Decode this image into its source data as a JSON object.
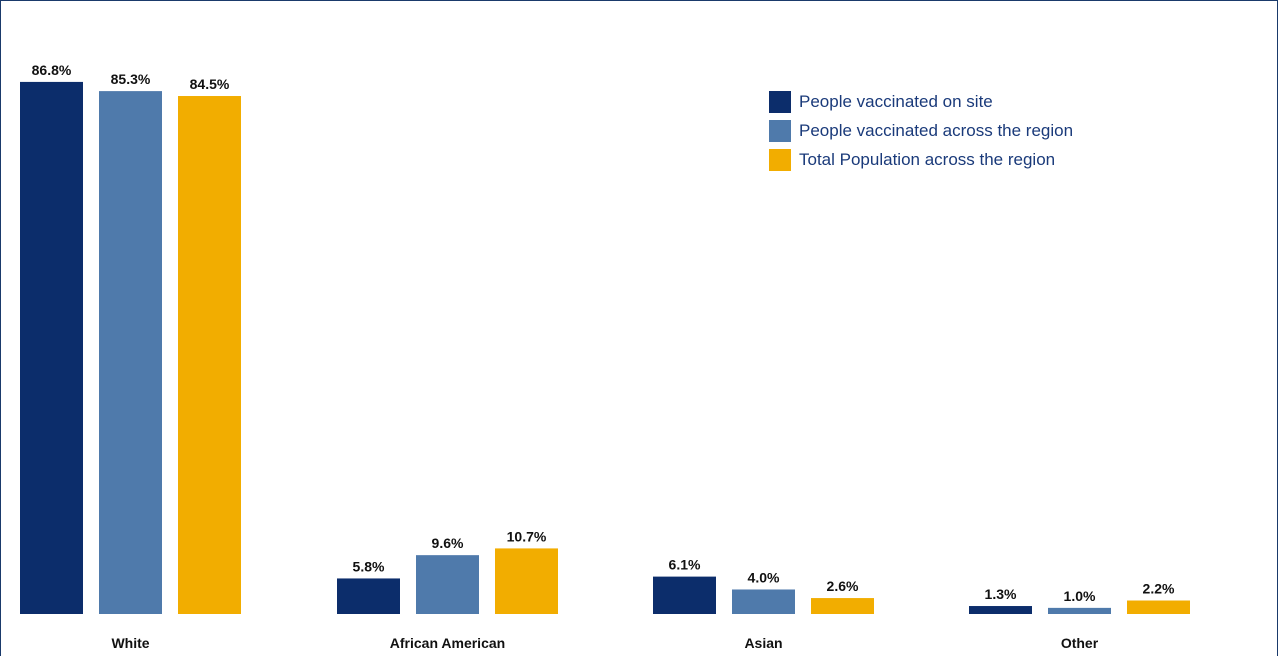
{
  "chart_data": {
    "type": "bar",
    "categories": [
      "White",
      "African American",
      "Asian",
      "Other"
    ],
    "series": [
      {
        "name": "People vaccinated on site",
        "color": "#0c2d6b",
        "values": [
          86.8,
          5.8,
          6.1,
          1.3
        ],
        "labels": [
          "86.8%",
          "5.8%",
          "6.1%",
          "1.3%"
        ]
      },
      {
        "name": "People vaccinated across the region",
        "color": "#4f7aab",
        "values": [
          85.3,
          9.6,
          4.0,
          1.0
        ],
        "labels": [
          "85.3%",
          "9.6%",
          "4.0%",
          "1.0%"
        ]
      },
      {
        "name": "Total Population across the region",
        "color": "#f2ad00",
        "values": [
          84.5,
          10.7,
          2.6,
          2.2
        ],
        "labels": [
          "84.5%",
          "10.7%",
          "2.6%",
          "2.2%"
        ]
      }
    ],
    "ylim": [
      0,
      100
    ],
    "grid": false,
    "legend_position": "top-right",
    "title": "",
    "xlabel": "",
    "ylabel": ""
  }
}
